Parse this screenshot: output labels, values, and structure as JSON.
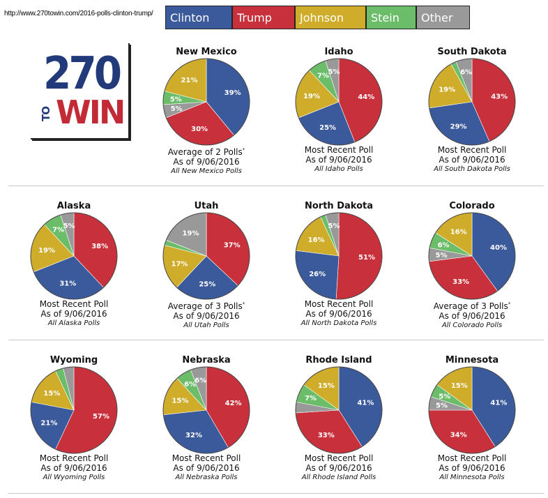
{
  "url": "http://www.270towin.com/2016-polls-clinton-trump/",
  "logo": {
    "top": "270",
    "to": "TO",
    "win": "WIN"
  },
  "legend": [
    {
      "name": "Clinton",
      "color": "#3b5a9b"
    },
    {
      "name": "Trump",
      "color": "#c8313b"
    },
    {
      "name": "Johnson",
      "color": "#cfad2b"
    },
    {
      "name": "Stein",
      "color": "#6cbd6a"
    },
    {
      "name": "Other",
      "color": "#999999"
    }
  ],
  "chart_data": [
    {
      "type": "pie",
      "title": "New Mexico",
      "labels": [
        "Clinton",
        "Trump",
        "Other",
        "Stein",
        "Johnson"
      ],
      "values": [
        39,
        30,
        5,
        5,
        21
      ],
      "label_text": [
        "39%",
        "30%",
        "5%",
        "5%",
        "21%"
      ],
      "poll": "Average of 2 Polls",
      "asterisk": "*",
      "date": "As of 9/06/2016",
      "link": "All New Mexico Polls"
    },
    {
      "type": "pie",
      "title": "Idaho",
      "labels": [
        "Trump",
        "Clinton",
        "Johnson",
        "Stein",
        "Other"
      ],
      "values": [
        44,
        25,
        19,
        7,
        5
      ],
      "label_text": [
        "44%",
        "25%",
        "19%",
        "7%",
        "5%"
      ],
      "poll": "Most Recent Poll",
      "asterisk": "",
      "date": "As of 9/06/2016",
      "link": "All Idaho Polls"
    },
    {
      "type": "pie",
      "title": "South Dakota",
      "labels": [
        "Trump",
        "Clinton",
        "Johnson",
        "Stein",
        "Other"
      ],
      "values": [
        43,
        29,
        19,
        2,
        6
      ],
      "label_text": [
        "43%",
        "29%",
        "19%",
        "",
        "6%"
      ],
      "poll": "Most Recent Poll",
      "asterisk": "",
      "date": "As of 9/06/2016",
      "link": "All South Dakota Polls"
    },
    {
      "type": "pie",
      "title": "Alaska",
      "labels": [
        "Trump",
        "Clinton",
        "Johnson",
        "Stein",
        "Other"
      ],
      "values": [
        38,
        31,
        19,
        7,
        5
      ],
      "label_text": [
        "38%",
        "31%",
        "19%",
        "7%",
        "5%"
      ],
      "poll": "Most Recent Poll",
      "asterisk": "",
      "date": "As of 9/06/2016",
      "link": "All Alaska Polls"
    },
    {
      "type": "pie",
      "title": "Utah",
      "labels": [
        "Trump",
        "Clinton",
        "Johnson",
        "Stein",
        "Other"
      ],
      "values": [
        37,
        25,
        17,
        2,
        19
      ],
      "label_text": [
        "37%",
        "25%",
        "17%",
        "",
        "19%"
      ],
      "poll": "Average of 3 Polls",
      "asterisk": "*",
      "date": "As of 9/06/2016",
      "link": "All Utah Polls"
    },
    {
      "type": "pie",
      "title": "North Dakota",
      "labels": [
        "Trump",
        "Clinton",
        "Johnson",
        "Stein",
        "Other"
      ],
      "values": [
        51,
        26,
        16,
        2,
        5
      ],
      "label_text": [
        "51%",
        "26%",
        "16%",
        "",
        "5%"
      ],
      "poll": "Most Recent Poll",
      "asterisk": "",
      "date": "As of 9/06/2016",
      "link": "All North Dakota Polls"
    },
    {
      "type": "pie",
      "title": "Colorado",
      "labels": [
        "Clinton",
        "Trump",
        "Other",
        "Stein",
        "Johnson"
      ],
      "values": [
        40,
        33,
        5,
        6,
        16
      ],
      "label_text": [
        "40%",
        "33%",
        "5%",
        "6%",
        "16%"
      ],
      "poll": "Average of 3 Polls",
      "asterisk": "*",
      "date": "As of 9/06/2016",
      "link": "All Colorado Polls"
    },
    {
      "type": "pie",
      "title": "Wyoming",
      "labels": [
        "Trump",
        "Clinton",
        "Johnson",
        "Stein",
        "Other"
      ],
      "values": [
        57,
        21,
        15,
        3,
        4
      ],
      "label_text": [
        "57%",
        "21%",
        "15%",
        "",
        ""
      ],
      "poll": "Most Recent Poll",
      "asterisk": "",
      "date": "As of 9/06/2016",
      "link": "All Wyoming Polls"
    },
    {
      "type": "pie",
      "title": "Nebraska",
      "labels": [
        "Trump",
        "Clinton",
        "Johnson",
        "Stein",
        "Other"
      ],
      "values": [
        42,
        32,
        15,
        6,
        6
      ],
      "label_text": [
        "42%",
        "32%",
        "15%",
        "6%",
        "6%"
      ],
      "poll": "Most Recent Poll",
      "asterisk": "",
      "date": "As of 9/06/2016",
      "link": "All Nebraska Polls"
    },
    {
      "type": "pie",
      "title": "Rhode Island",
      "labels": [
        "Clinton",
        "Trump",
        "Other",
        "Stein",
        "Johnson"
      ],
      "values": [
        41,
        33,
        4,
        7,
        15
      ],
      "label_text": [
        "41%",
        "33%",
        "",
        "7%",
        "15%"
      ],
      "poll": "Most Recent Poll",
      "asterisk": "",
      "date": "As of 9/06/2016",
      "link": "All Rhode Island Polls"
    },
    {
      "type": "pie",
      "title": "Minnesota",
      "labels": [
        "Clinton",
        "Trump",
        "Other",
        "Stein",
        "Johnson"
      ],
      "values": [
        41,
        34,
        5,
        5,
        15
      ],
      "label_text": [
        "41%",
        "34%",
        "5%",
        "5%",
        "15%"
      ],
      "poll": "Most Recent Poll",
      "asterisk": "",
      "date": "As of 9/06/2016",
      "link": "All Minnesota Polls"
    }
  ]
}
